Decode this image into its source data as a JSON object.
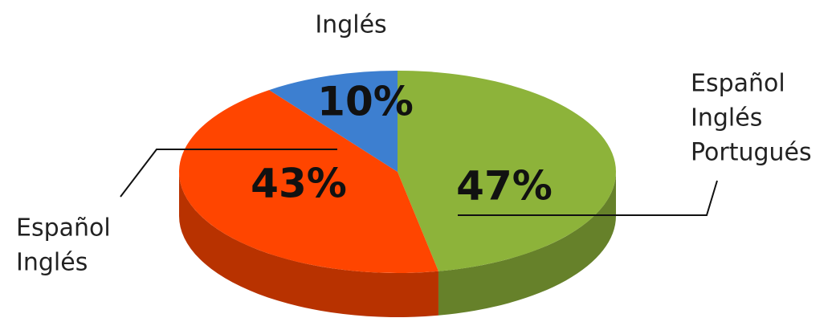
{
  "chart_data": {
    "type": "pie",
    "categories": [
      [
        "Español",
        "Inglés",
        "Portugués"
      ],
      [
        "Español",
        "Inglés"
      ],
      [
        "Inglés"
      ]
    ],
    "values": [
      47,
      43,
      10
    ],
    "value_labels": [
      "47%",
      "43%",
      "10%"
    ],
    "colors": [
      "#8db33a",
      "#ff4500",
      "#3d7fd0"
    ]
  }
}
